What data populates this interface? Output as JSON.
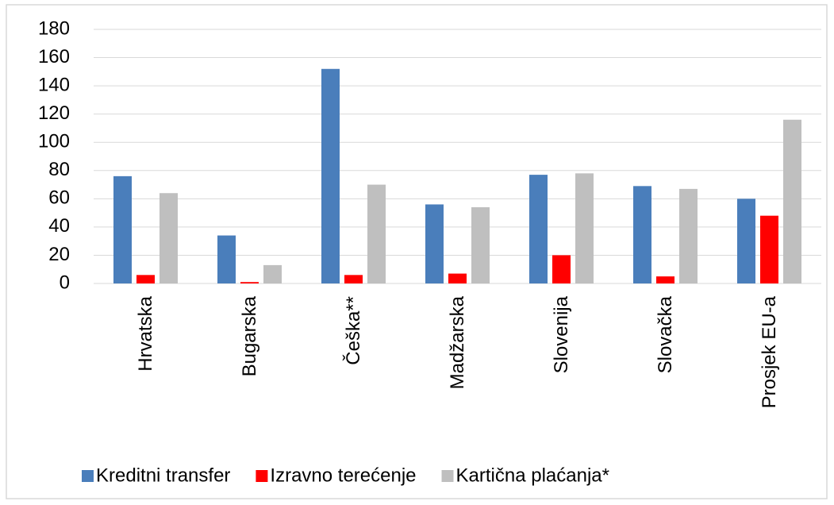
{
  "chart_data": {
    "type": "bar",
    "categories": [
      "Hrvatska",
      "Bugarska",
      "Češka**",
      "Madžarska",
      "Slovenija",
      "Slovačka",
      "Prosjek EU-a"
    ],
    "series": [
      {
        "name": "Kreditni transfer",
        "color": "#4a7ebb",
        "values": [
          76,
          34,
          152,
          56,
          77,
          69,
          60
        ]
      },
      {
        "name": "Izravno terećenje",
        "color": "#ff0000",
        "values": [
          6,
          1,
          6,
          7,
          20,
          5,
          48
        ]
      },
      {
        "name": "Kartična plaćanja*",
        "color": "#bfbfbf",
        "values": [
          64,
          13,
          70,
          54,
          78,
          67,
          116
        ]
      }
    ],
    "ylim": [
      0,
      180
    ],
    "yticks": [
      0,
      20,
      40,
      60,
      80,
      100,
      120,
      140,
      160,
      180
    ],
    "grid": true,
    "legend": "bottom"
  }
}
